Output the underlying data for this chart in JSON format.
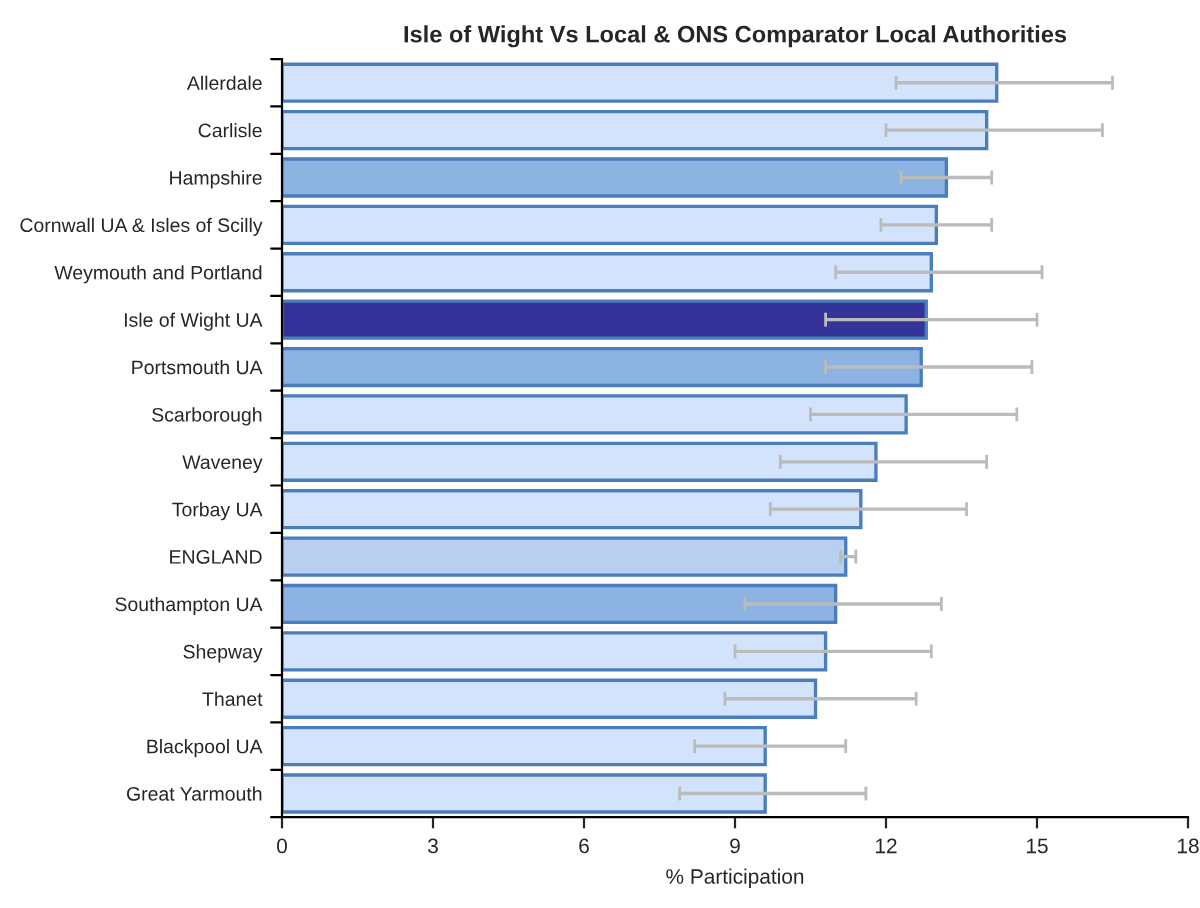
{
  "chart_data": {
    "type": "bar",
    "orientation": "horizontal",
    "title": "Isle of Wight Vs Local & ONS Comparator Local Authorities",
    "xlabel": "% Participation",
    "categories": [
      "Allerdale",
      "Carlisle",
      "Hampshire",
      "Cornwall UA & Isles of Scilly",
      "Weymouth and Portland",
      "Isle of Wight UA",
      "Portsmouth UA",
      "Scarborough",
      "Waveney",
      "Torbay UA",
      "ENGLAND",
      "Southampton UA",
      "Shepway",
      "Thanet",
      "Blackpool UA",
      "Great Yarmouth"
    ],
    "values": [
      14.2,
      14.0,
      13.2,
      13.0,
      12.9,
      12.8,
      12.7,
      12.4,
      11.8,
      11.5,
      11.2,
      11.0,
      10.8,
      10.6,
      9.6,
      9.6
    ],
    "errors": [
      [
        12.2,
        16.5
      ],
      [
        12.0,
        16.3
      ],
      [
        12.3,
        14.1
      ],
      [
        11.9,
        14.1
      ],
      [
        11.0,
        15.1
      ],
      [
        10.8,
        15.0
      ],
      [
        10.8,
        14.9
      ],
      [
        10.5,
        14.6
      ],
      [
        9.9,
        14.0
      ],
      [
        9.7,
        13.6
      ],
      [
        11.1,
        11.4
      ],
      [
        9.2,
        13.1
      ],
      [
        9.0,
        12.9
      ],
      [
        8.8,
        12.6
      ],
      [
        8.2,
        11.2
      ],
      [
        7.9,
        11.6
      ]
    ],
    "colors": [
      "#d4e3fc",
      "#d4e3fc",
      "#8db3e2",
      "#d4e3fc",
      "#d4e3fc",
      "#333399",
      "#8db3e2",
      "#d4e3fc",
      "#d4e3fc",
      "#d4e3fc",
      "#b9cff0",
      "#8db3e2",
      "#d4e3fc",
      "#d4e3fc",
      "#d4e3fc",
      "#d4e3fc"
    ],
    "xlim": [
      0,
      18
    ],
    "xticks": [
      0,
      3,
      6,
      9,
      12,
      15,
      18
    ],
    "grid": false
  }
}
